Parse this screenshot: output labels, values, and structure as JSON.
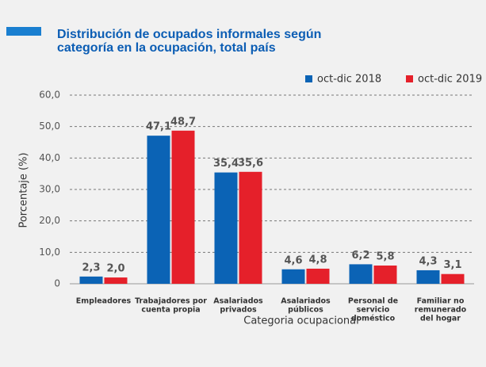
{
  "chart_data": {
    "type": "bar",
    "title": [
      "Distribución de ocupados informales según",
      "categoría en la ocupación, total país"
    ],
    "y_label": "Porcentaje (%)",
    "x_label": "Categoria ocupacional",
    "categories": [
      [
        "Empleadores"
      ],
      [
        "Trabajadores por",
        "cuenta propia"
      ],
      [
        "Asalariados",
        "privados"
      ],
      [
        "Asalariados",
        "públicos"
      ],
      [
        "Personal de",
        "servicio",
        "doméstico"
      ],
      [
        "Familiar no",
        "remunerado",
        "del hogar"
      ]
    ],
    "series": [
      {
        "name": "oct-dic 2018",
        "color": "#0b63b5",
        "values": [
          2.3,
          47.1,
          35.4,
          4.6,
          6.2,
          4.3
        ],
        "value_labels": [
          "2,3",
          "47,1",
          "35,4",
          "4,6",
          "6,2",
          "4,3"
        ]
      },
      {
        "name": "oct-dic 2019",
        "color": "#e5202a",
        "values": [
          2.0,
          48.7,
          35.6,
          4.8,
          5.8,
          3.1
        ],
        "value_labels": [
          "2,0",
          "48,7",
          "35,6",
          "4,8",
          "5,8",
          "3,1"
        ]
      }
    ],
    "ylim": [
      0,
      60
    ],
    "yticks": [
      0,
      {
        "value": 10,
        "label": "10,0"
      },
      {
        "value": 20,
        "label": "20,0"
      },
      {
        "value": 30,
        "label": "30,0"
      },
      {
        "value": 40,
        "label": "40,0"
      },
      {
        "value": 50,
        "label": "50,0"
      },
      {
        "value": 60,
        "label": "60,0"
      }
    ],
    "grid": true,
    "legend": "top-right"
  }
}
